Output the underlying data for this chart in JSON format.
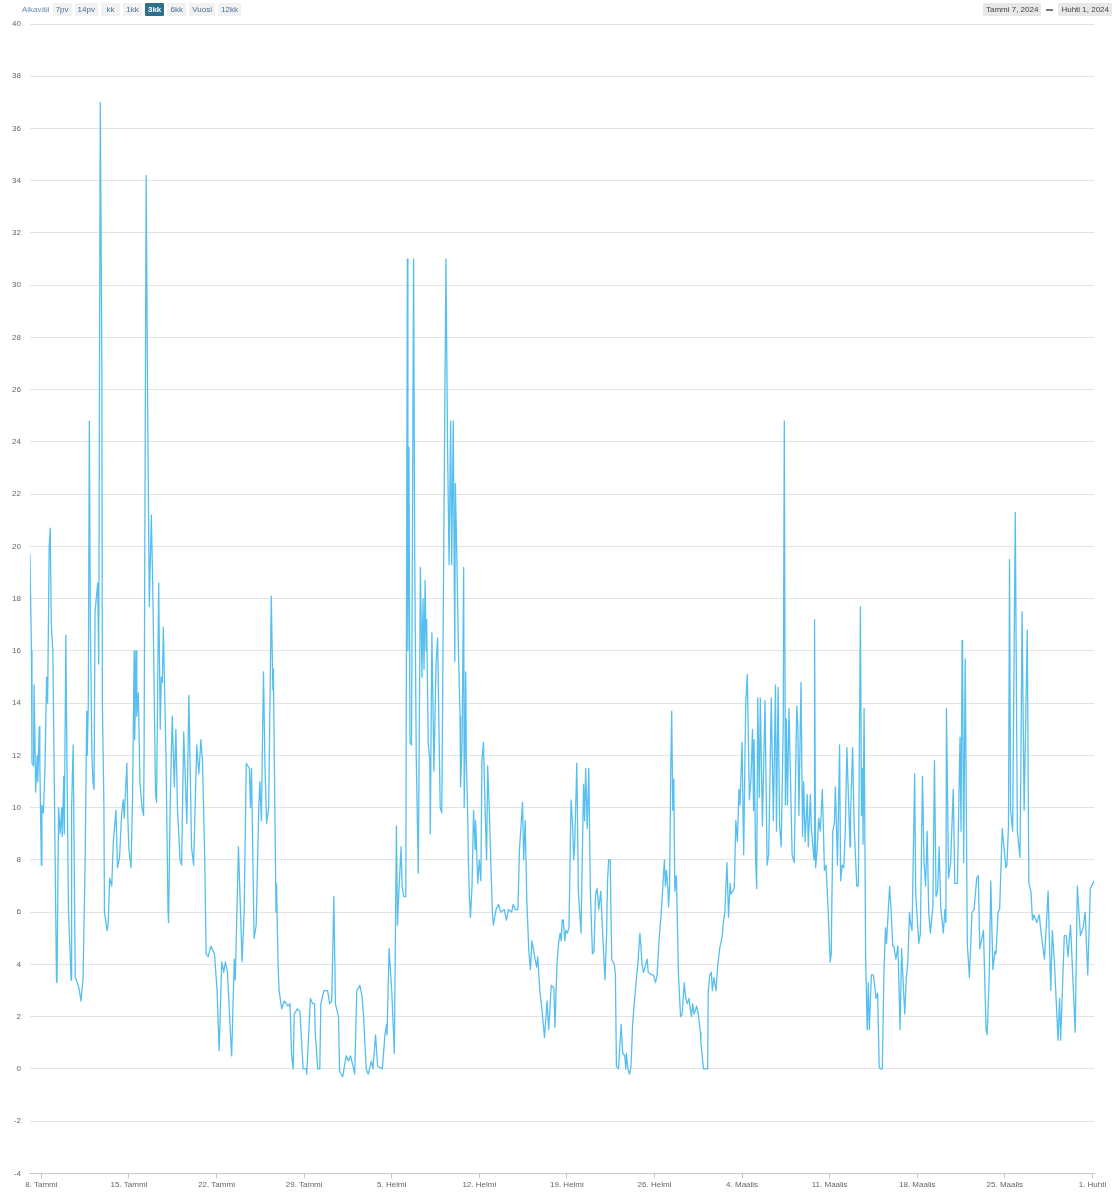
{
  "chart_data": {
    "type": "line",
    "color": "#56bff0",
    "marker": "none",
    "line_style": "solid",
    "grid": "y",
    "annotations": [
      "Aikaväli",
      "7pv",
      "14pv",
      "kk",
      "1kk",
      "3kk",
      "6kk",
      "Vuosi",
      "12kk",
      "Tammi 7, 2024",
      "Huhti 1, 2024"
    ],
    "xlim": [
      "2024-01-07T02:00",
      "2024-04-01T03:00"
    ],
    "xticks": [
      {
        "value": "2024-01-08",
        "label": "8. Tammi"
      },
      {
        "value": "2024-01-15",
        "label": "15. Tammi"
      },
      {
        "value": "2024-01-22",
        "label": "22. Tammi"
      },
      {
        "value": "2024-01-29",
        "label": "29. Tammi"
      },
      {
        "value": "2024-02-05",
        "label": "5. Helmi"
      },
      {
        "value": "2024-02-12",
        "label": "12. Helmi"
      },
      {
        "value": "2024-02-19",
        "label": "19. Helmi"
      },
      {
        "value": "2024-02-26",
        "label": "26. Helmi"
      },
      {
        "value": "2024-03-04",
        "label": "4. Maalis"
      },
      {
        "value": "2024-03-11",
        "label": "11. Maalis"
      },
      {
        "value": "2024-03-18",
        "label": "18. Maalis"
      },
      {
        "value": "2024-03-25",
        "label": "25. Maalis"
      },
      {
        "value": "2024-04-01",
        "label": "1. Huhti"
      }
    ],
    "ylim": [
      -4,
      40
    ],
    "yticks": [
      -4,
      -2,
      0,
      2,
      4,
      6,
      8,
      10,
      12,
      14,
      16,
      18,
      20,
      22,
      24,
      26,
      28,
      30,
      32,
      34,
      36,
      38,
      40
    ],
    "x": [
      "2024-01-07T02:00",
      "2024-01-07T05:00",
      "2024-01-07T06:00",
      "2024-01-07T09:00",
      "2024-01-07T10:00",
      "2024-01-07T13:00",
      "2024-01-07T16:00",
      "2024-01-07T17:00",
      "2024-01-07T20:00",
      "2024-01-07T21:00",
      "2024-01-08T00:00",
      "2024-01-08T01:00",
      "2024-01-08T04:00",
      "2024-01-08T07:00",
      "2024-01-08T10:00",
      "2024-01-08T12:00",
      "2024-01-08T15:00",
      "2024-01-08T17:00",
      "2024-01-08T19:00",
      "2024-01-08T22:00",
      "2024-01-09T05:00",
      "2024-01-09T06:00",
      "2024-01-09T09:00",
      "2024-01-09T12:00",
      "2024-01-09T15:00",
      "2024-01-09T16:00",
      "2024-01-09T19:00",
      "2024-01-09T20:00",
      "2024-01-09T23:00",
      "2024-01-10T00:00",
      "2024-01-10T04:00",
      "2024-01-10T07:00",
      "2024-01-10T09:00",
      "2024-01-10T10:00",
      "2024-01-10T13:00",
      "2024-01-10T17:00",
      "2024-01-10T21:00",
      "2024-01-11T00:00",
      "2024-01-11T04:00",
      "2024-01-11T08:00",
      "2024-01-11T12:00",
      "2024-01-11T15:00",
      "2024-01-11T16:00",
      "2024-01-11T18:00",
      "2024-01-11T20:00",
      "2024-01-11T22:00",
      "2024-01-12T01:00",
      "2024-01-12T03:00",
      "2024-01-12T05:00",
      "2024-01-12T07:00",
      "2024-01-12T12:00",
      "2024-01-12T14:00",
      "2024-01-12T17:00",
      "2024-01-12T20:00",
      "2024-01-12T21:00",
      "2024-01-13T00:00",
      "2024-01-13T01:00",
      "2024-01-13T06:00",
      "2024-01-13T08:00",
      "2024-01-13T11:00",
      "2024-01-13T15:00",
      "2024-01-13T18:00",
      "2024-01-13T21:00",
      "2024-01-13T23:00",
      "2024-01-14T02:00",
      "2024-01-14T06:00",
      "2024-01-14T10:00",
      "2024-01-14T13:00",
      "2024-01-14T15:00",
      "2024-01-14T20:00",
      "2024-01-14T22:00",
      "2024-01-15T00:00",
      "2024-01-15T04:00",
      "2024-01-15T07:00",
      "2024-01-15T10:00",
      "2024-01-15T11:00",
      "2024-01-15T14:00",
      "2024-01-15T15:00",
      "2024-01-15T18:00",
      "2024-01-15T21:00",
      "2024-01-16T01:00",
      "2024-01-16T04:00",
      "2024-01-16T05:00",
      "2024-01-16T09:00",
      "2024-01-16T12:00",
      "2024-01-16T15:00",
      "2024-01-16T19:00",
      "2024-01-16T22:00",
      "2024-01-17T03:00",
      "2024-01-17T05:00",
      "2024-01-17T09:00",
      "2024-01-17T12:00",
      "2024-01-17T14:00",
      "2024-01-17T16:00",
      "2024-01-17T18:00",
      "2024-01-17T23:00",
      "2024-01-18T03:00",
      "2024-01-18T04:00",
      "2024-01-18T07:00",
      "2024-01-18T11:00",
      "2024-01-18T15:00",
      "2024-01-18T18:00",
      "2024-01-18T21:00",
      "2024-01-19T02:00",
      "2024-01-19T05:00",
      "2024-01-19T09:00",
      "2024-01-19T15:00",
      "2024-01-19T19:00",
      "2024-01-20T00:00",
      "2024-01-20T04:00",
      "2024-01-20T10:00",
      "2024-01-20T14:00",
      "2024-01-20T18:00",
      "2024-01-20T21:00",
      "2024-01-21T01:00",
      "2024-01-21T04:00",
      "2024-01-21T08:00",
      "2024-01-21T13:00",
      "2024-01-21T20:00",
      "2024-01-22T01:00",
      "2024-01-22T05:00",
      "2024-01-22T10:00",
      "2024-01-22T14:00",
      "2024-01-22T17:00",
      "2024-01-22T21:00",
      "2024-01-23T03:00",
      "2024-01-23T05:00",
      "2024-01-23T10:00",
      "2024-01-23T12:00",
      "2024-01-23T18:00",
      "2024-01-24T01:00",
      "2024-01-24T05:00",
      "2024-01-24T09:00",
      "2024-01-24T15:00",
      "2024-01-24T17:00",
      "2024-01-24T19:00",
      "2024-01-25T00:00",
      "2024-01-25T04:00",
      "2024-01-25T09:00",
      "2024-01-25T11:00",
      "2024-01-25T14:00",
      "2024-01-25T18:00",
      "2024-01-25T21:00",
      "2024-01-26T00:00",
      "2024-01-26T04:00",
      "2024-01-26T09:00",
      "2024-01-26T12:00",
      "2024-01-26T13:00",
      "2024-01-26T18:00",
      "2024-01-26T19:00",
      "2024-01-26T22:00",
      "2024-01-27T00:00",
      "2024-01-27T05:00",
      "2024-01-27T10:00",
      "2024-01-27T17:00",
      "2024-01-27T21:00",
      "2024-01-28T00:00",
      "2024-01-28T03:00",
      "2024-01-28T05:00",
      "2024-01-28T11:00",
      "2024-01-28T16:00",
      "2024-01-28T22:00",
      "2024-01-29T04:00",
      "2024-01-29T05:00",
      "2024-01-29T12:00",
      "2024-01-29T16:00",
      "2024-01-29T20:00",
      "2024-01-29T21:00",
      "2024-01-30T02:00",
      "2024-01-30T06:00",
      "2024-01-30T08:00",
      "2024-01-30T14:00",
      "2024-01-30T21:00",
      "2024-01-31T01:00",
      "2024-01-31T05:00",
      "2024-01-31T09:00",
      "2024-01-31T12:00",
      "2024-01-31T18:00",
      "2024-01-31T20:00",
      "2024-02-01T02:00",
      "2024-02-01T06:00",
      "2024-02-01T09:00",
      "2024-02-01T13:00",
      "2024-02-01T17:00",
      "2024-02-01T23:00",
      "2024-02-02T01:00",
      "2024-02-02T05:00",
      "2024-02-02T11:00",
      "2024-02-02T15:00",
      "2024-02-02T18:00",
      "2024-02-02T23:00",
      "2024-02-03T03:00",
      "2024-02-03T09:00",
      "2024-02-03T12:00",
      "2024-02-03T17:00",
      "2024-02-03T21:00",
      "2024-02-04T06:00",
      "2024-02-04T11:00",
      "2024-02-04T14:00",
      "2024-02-04T15:00",
      "2024-02-04T19:00",
      "2024-02-05T00:00",
      "2024-02-05T05:00",
      "2024-02-05T09:00",
      "2024-02-05T11:00",
      "2024-02-05T13:00",
      "2024-02-05T18:00",
      "2024-02-05T20:00",
      "2024-02-05T23:00",
      "2024-02-06T03:00",
      "2024-02-06T06:00",
      "2024-02-06T07:00",
      "2024-02-06T09:00",
      "2024-02-06T11:00",
      "2024-02-06T14:00",
      "2024-02-06T18:00",
      "2024-02-06T20:00",
      "2024-02-06T23:00",
      "2024-02-07T03:00",
      "2024-02-07T07:00",
      "2024-02-07T10:00",
      "2024-02-07T12:00",
      "2024-02-07T14:00",
      "2024-02-07T16:00",
      "2024-02-07T18:00",
      "2024-02-07T19:00",
      "2024-02-07T22:00",
      "2024-02-08T01:00",
      "2024-02-08T02:00",
      "2024-02-08T05:00",
      "2024-02-08T09:00",
      "2024-02-08T13:00",
      "2024-02-08T16:00",
      "2024-02-08T19:00",
      "2024-02-08T21:00",
      "2024-02-09T00:00",
      "2024-02-09T08:00",
      "2024-02-09T11:00",
      "2024-02-09T14:00",
      "2024-02-09T17:00",
      "2024-02-09T19:00",
      "2024-02-09T22:00",
      "2024-02-10T01:00",
      "2024-02-10T02:00",
      "2024-02-10T05:00",
      "2024-02-10T08:00",
      "2024-02-10T11:00",
      "2024-02-10T12:00",
      "2024-02-10T15:00",
      "2024-02-10T18:00",
      "2024-02-10T19:00",
      "2024-02-10T22:00",
      "2024-02-10T23:00",
      "2024-02-11T02:00",
      "2024-02-11T03:00",
      "2024-02-11T05:00",
      "2024-02-11T07:00",
      "2024-02-11T10:00",
      "2024-02-11T13:00",
      "2024-02-11T16:00",
      "2024-02-11T17:00",
      "2024-02-11T21:00",
      "2024-02-12T00:00",
      "2024-02-12T03:00",
      "2024-02-12T05:00",
      "2024-02-12T08:00",
      "2024-02-12T11:00",
      "2024-02-12T14:00",
      "2024-02-12T16:00",
      "2024-02-12T19:00",
      "2024-02-12T22:00",
      "2024-02-13T01:00",
      "2024-02-13T03:00",
      "2024-02-13T08:00",
      "2024-02-13T13:00",
      "2024-02-13T17:00",
      "2024-02-14T00:00",
      "2024-02-14T04:00",
      "2024-02-14T08:00",
      "2024-02-14T14:00",
      "2024-02-14T17:00",
      "2024-02-14T21:00",
      "2024-02-15T02:00",
      "2024-02-15T05:00",
      "2024-02-15T11:00",
      "2024-02-15T13:00",
      "2024-02-15T16:00",
      "2024-02-15T19:00",
      "2024-02-15T23:00",
      "2024-02-16T02:00",
      "2024-02-16T05:00",
      "2024-02-16T11:00",
      "2024-02-16T14:00",
      "2024-02-16T16:00",
      "2024-02-16T20:00",
      "2024-02-17T00:00",
      "2024-02-17T05:00",
      "2024-02-17T10:00",
      "2024-02-17T13:00",
      "2024-02-17T18:00",
      "2024-02-17T23:00",
      "2024-02-18T01:00",
      "2024-02-18T05:00",
      "2024-02-18T08:00",
      "2024-02-18T11:00",
      "2024-02-18T13:00",
      "2024-02-18T15:00",
      "2024-02-18T17:00",
      "2024-02-18T20:00",
      "2024-02-18T22:00",
      "2024-02-19T01:00",
      "2024-02-19T04:00",
      "2024-02-19T08:00",
      "2024-02-19T11:00",
      "2024-02-19T13:00",
      "2024-02-19T15:00",
      "2024-02-19T19:00",
      "2024-02-19T22:00",
      "2024-02-20T03:00",
      "2024-02-20T08:00",
      "2024-02-20T10:00",
      "2024-02-20T12:00",
      "2024-02-20T15:00",
      "2024-02-20T18:00",
      "2024-02-20T21:00",
      "2024-02-21T01:00",
      "2024-02-21T04:00",
      "2024-02-21T07:00",
      "2024-02-21T10:00",
      "2024-02-21T13:00",
      "2024-02-21T17:00",
      "2024-02-21T21:00",
      "2024-02-22T01:00",
      "2024-02-22T04:00",
      "2024-02-22T06:00",
      "2024-02-22T08:00",
      "2024-02-22T11:00",
      "2024-02-22T14:00",
      "2024-02-22T19:00",
      "2024-02-22T21:00",
      "2024-02-22T23:00",
      "2024-02-23T03:00",
      "2024-02-23T08:00",
      "2024-02-23T11:00",
      "2024-02-23T15:00",
      "2024-02-23T17:00",
      "2024-02-23T18:00",
      "2024-02-23T21:00",
      "2024-02-24T00:00",
      "2024-02-24T03:00",
      "2024-02-24T06:00",
      "2024-02-24T10:00",
      "2024-02-24T14:00",
      "2024-02-24T16:00",
      "2024-02-24T20:00",
      "2024-02-24T22:00",
      "2024-02-25T00:00",
      "2024-02-25T03:00",
      "2024-02-25T10:00",
      "2024-02-25T12:00",
      "2024-02-25T18:00",
      "2024-02-25T22:00",
      "2024-02-26T02:00",
      "2024-02-26T05:00",
      "2024-02-26T09:00",
      "2024-02-26T13:00",
      "2024-02-26T16:00",
      "2024-02-26T19:00",
      "2024-02-26T21:00",
      "2024-02-26T23:00",
      "2024-02-27T02:00",
      "2024-02-27T03:00",
      "2024-02-27T05:00",
      "2024-02-27T07:00",
      "2024-02-27T09:00",
      "2024-02-27T11:00",
      "2024-02-27T13:00",
      "2024-02-27T15:00",
      "2024-02-27T18:00",
      "2024-02-27T22:00",
      "2024-02-28T02:00",
      "2024-02-28T05:00",
      "2024-02-28T09:00",
      "2024-02-28T12:00",
      "2024-02-28T15:00",
      "2024-02-28T18:00",
      "2024-02-28T20:00",
      "2024-02-28T23:00",
      "2024-02-29T01:00",
      "2024-02-29T04:00",
      "2024-02-29T09:00",
      "2024-02-29T12:00",
      "2024-02-29T16:00",
      "2024-02-29T17:00",
      "2024-02-29T22:00",
      "2024-03-01T06:00",
      "2024-03-01T07:00",
      "2024-03-01T10:00",
      "2024-03-01T13:00",
      "2024-03-01T15:00",
      "2024-03-01T18:00",
      "2024-03-01T22:00",
      "2024-03-02T01:00",
      "2024-03-02T05:00",
      "2024-03-02T07:00",
      "2024-03-02T10:00",
      "2024-03-02T12:00",
      "2024-03-02T15:00",
      "2024-03-02T19:00",
      "2024-03-02T22:00",
      "2024-03-03T01:00",
      "2024-03-03T03:00",
      "2024-03-03T06:00",
      "2024-03-03T09:00",
      "2024-03-03T12:00",
      "2024-03-03T15:00",
      "2024-03-03T18:00",
      "2024-03-03T20:00",
      "2024-03-04T00:00",
      "2024-03-04T03:00",
      "2024-03-04T07:00",
      "2024-03-04T10:00",
      "2024-03-04T14:00",
      "2024-03-04T17:00",
      "2024-03-04T20:00",
      "2024-03-04T22:00",
      "2024-03-04T23:00",
      "2024-03-05T02:00",
      "2024-03-05T04:00",
      "2024-03-05T06:00",
      "2024-03-05T09:00",
      "2024-03-05T11:00",
      "2024-03-05T15:00",
      "2024-03-05T20:00",
      "2024-03-06T00:00",
      "2024-03-06T03:00",
      "2024-03-06T08:00",
      "2024-03-06T12:00",
      "2024-03-06T16:00",
      "2024-03-06T18:00",
      "2024-03-06T21:00",
      "2024-03-07T00:00",
      "2024-03-07T03:00",
      "2024-03-07T07:00",
      "2024-03-07T09:00",
      "2024-03-07T11:00",
      "2024-03-07T13:00",
      "2024-03-07T15:00",
      "2024-03-07T18:00",
      "2024-03-08T00:00",
      "2024-03-08T04:00",
      "2024-03-08T07:00",
      "2024-03-08T09:00",
      "2024-03-08T11:00",
      "2024-03-08T13:00",
      "2024-03-08T17:00",
      "2024-03-08T20:00",
      "2024-03-08T22:00",
      "2024-03-09T01:00",
      "2024-03-09T05:00",
      "2024-03-09T07:00",
      "2024-03-09T11:00",
      "2024-03-09T13:00",
      "2024-03-09T18:00",
      "2024-03-09T19:00",
      "2024-03-09T21:00",
      "2024-03-10T00:00",
      "2024-03-10T03:00",
      "2024-03-10T06:00",
      "2024-03-10T10:00",
      "2024-03-10T14:00",
      "2024-03-10T17:00",
      "2024-03-10T21:00",
      "2024-03-11T01:00",
      "2024-03-11T03:00",
      "2024-03-11T06:00",
      "2024-03-11T09:00",
      "2024-03-11T11:00",
      "2024-03-11T15:00",
      "2024-03-11T19:00",
      "2024-03-11T21:00",
      "2024-03-12T00:00",
      "2024-03-12T03:00",
      "2024-03-12T06:00",
      "2024-03-12T09:00",
      "2024-03-12T15:00",
      "2024-03-12T16:00",
      "2024-03-12T20:00",
      "2024-03-12T23:00",
      "2024-03-13T04:00",
      "2024-03-13T07:00",
      "2024-03-13T11:00",
      "2024-03-13T13:00",
      "2024-03-13T15:00",
      "2024-03-13T16:00",
      "2024-03-13T18:00",
      "2024-03-13T21:00",
      "2024-03-14T00:00",
      "2024-03-14T02:00",
      "2024-03-14T04:00",
      "2024-03-14T08:00",
      "2024-03-14T12:00",
      "2024-03-14T17:00",
      "2024-03-14T20:00",
      "2024-03-14T23:00",
      "2024-03-15T01:00",
      "2024-03-15T05:00",
      "2024-03-15T08:00",
      "2024-03-15T11:00",
      "2024-03-15T13:00",
      "2024-03-15T19:00",
      "2024-03-15T22:00",
      "2024-03-16T01:00",
      "2024-03-16T03:00",
      "2024-03-16T07:00",
      "2024-03-16T11:00",
      "2024-03-16T15:00",
      "2024-03-16T18:00",
      "2024-03-16T21:00",
      "2024-03-17T00:00",
      "2024-03-17T03:00",
      "2024-03-17T06:00",
      "2024-03-17T09:00",
      "2024-03-17T11:00",
      "2024-03-17T14:00",
      "2024-03-17T19:00",
      "2024-03-17T21:00",
      "2024-03-18T03:00",
      "2024-03-18T06:00",
      "2024-03-18T10:00",
      "2024-03-18T13:00",
      "2024-03-18T16:00",
      "2024-03-18T19:00",
      "2024-03-18T22:00",
      "2024-03-19T01:00",
      "2024-03-19T06:00",
      "2024-03-19T09:00",
      "2024-03-19T12:00",
      "2024-03-19T15:00",
      "2024-03-19T18:00",
      "2024-03-19T21:00",
      "2024-03-20T02:00",
      "2024-03-20T05:00",
      "2024-03-20T07:00",
      "2024-03-20T08:00",
      "2024-03-20T12:00",
      "2024-03-20T16:00",
      "2024-03-20T21:00",
      "2024-03-21T00:00",
      "2024-03-21T05:00",
      "2024-03-21T10:00",
      "2024-03-21T12:00",
      "2024-03-21T14:00",
      "2024-03-21T15:00",
      "2024-03-21T17:00",
      "2024-03-21T20:00",
      "2024-03-22T00:00",
      "2024-03-22T04:00",
      "2024-03-22T09:00",
      "2024-03-22T13:00",
      "2024-03-22T18:00",
      "2024-03-22T21:00",
      "2024-03-23T00:00",
      "2024-03-23T07:00",
      "2024-03-23T12:00",
      "2024-03-23T14:00",
      "2024-03-23T18:00",
      "2024-03-23T21:00",
      "2024-03-24T01:00",
      "2024-03-24T05:00",
      "2024-03-24T07:00",
      "2024-03-24T11:00",
      "2024-03-24T14:00",
      "2024-03-24T19:00",
      "2024-03-25T02:00",
      "2024-03-25T04:00",
      "2024-03-25T07:00",
      "2024-03-25T09:00",
      "2024-03-25T11:00",
      "2024-03-25T15:00",
      "2024-03-25T20:00",
      "2024-03-26T00:00",
      "2024-03-26T05:00",
      "2024-03-26T07:00",
      "2024-03-26T09:00",
      "2024-03-26T13:00",
      "2024-03-26T19:00",
      "2024-03-26T22:00",
      "2024-03-27T02:00",
      "2024-03-27T05:00",
      "2024-03-27T08:00",
      "2024-03-27T13:00",
      "2024-03-27T18:00",
      "2024-03-27T21:00",
      "2024-03-28T04:00",
      "2024-03-28T11:00",
      "2024-03-28T16:00",
      "2024-03-28T19:00",
      "2024-03-28T23:00",
      "2024-03-29T06:00",
      "2024-03-29T09:00",
      "2024-03-29T11:00",
      "2024-03-29T18:00",
      "2024-03-29T22:00",
      "2024-03-30T01:00",
      "2024-03-30T06:00",
      "2024-03-30T15:00",
      "2024-03-30T19:00",
      "2024-03-31T01:00",
      "2024-03-31T06:00",
      "2024-03-31T10:00",
      "2024-03-31T15:00",
      "2024-03-31T20:00",
      "2024-04-01T03:00"
    ],
    "values": [
      19.7,
      16.0,
      11.7,
      11.6,
      14.7,
      10.6,
      12.0,
      11.0,
      13.1,
      11.7,
      7.8,
      10.1,
      9.8,
      11.6,
      15.0,
      14.0,
      20.0,
      20.7,
      17.0,
      16.0,
      3.4,
      3.3,
      10.0,
      9.0,
      10.0,
      8.9,
      11.2,
      9.0,
      16.6,
      14.0,
      6.0,
      4.5,
      3.4,
      10.0,
      12.4,
      3.5,
      3.3,
      3.1,
      2.6,
      3.5,
      8.0,
      13.7,
      12.0,
      14.0,
      24.8,
      17.0,
      12.0,
      11.0,
      10.7,
      17.5,
      18.6,
      15.5,
      37.0,
      27.0,
      14.0,
      10.0,
      6.0,
      5.3,
      5.5,
      7.3,
      7.0,
      8.7,
      9.4,
      9.9,
      7.7,
      8.1,
      9.8,
      10.3,
      9.6,
      11.7,
      9.5,
      8.4,
      7.7,
      10.5,
      16.0,
      12.6,
      16.0,
      13.5,
      14.4,
      11.0,
      10.0,
      9.7,
      12.0,
      34.2,
      25.0,
      17.7,
      21.2,
      18.0,
      10.5,
      10.2,
      18.6,
      13.0,
      15.0,
      14.8,
      16.9,
      12.0,
      6.0,
      5.6,
      10.0,
      13.5,
      10.8,
      13.0,
      10.0,
      8.0,
      7.8,
      12.9,
      9.4,
      14.3,
      8.5,
      7.8,
      12.4,
      11.3,
      12.6,
      11.8,
      8.4,
      4.4,
      4.3,
      4.7,
      4.4,
      3.0,
      0.7,
      4.1,
      3.7,
      4.1,
      3.7,
      1.2,
      0.5,
      4.2,
      3.4,
      8.5,
      4.1,
      6.0,
      11.7,
      11.5,
      10.0,
      11.5,
      5.0,
      5.5,
      10.0,
      11.0,
      9.5,
      15.2,
      11.5,
      9.4,
      10.0,
      18.1,
      14.5,
      15.3,
      6.0,
      7.1,
      4.0,
      3.0,
      2.3,
      2.6,
      2.4,
      2.5,
      0.5,
      0.0,
      2.1,
      2.3,
      2.2,
      0.0,
      0.0,
      -0.2,
      2.7,
      2.5,
      2.5,
      1.5,
      0.0,
      0.0,
      2.5,
      3.0,
      3.0,
      2.5,
      2.6,
      6.6,
      2.5,
      2.0,
      -0.1,
      -0.3,
      0.2,
      0.5,
      0.3,
      0.5,
      0.0,
      -0.2,
      3.0,
      3.2,
      2.8,
      2.0,
      0.0,
      -0.2,
      0.3,
      0.0,
      1.3,
      0.1,
      0.0,
      1.3,
      1.7,
      1.3,
      4.6,
      3.0,
      0.6,
      9.3,
      5.5,
      6.5,
      8.5,
      7.0,
      6.6,
      6.6,
      31.0,
      16.0,
      23.8,
      12.5,
      12.4,
      31.0,
      20.0,
      12.0,
      7.5,
      19.2,
      15.0,
      18.0,
      15.3,
      18.7,
      16.0,
      17.2,
      12.5,
      11.8,
      9.0,
      16.7,
      11.4,
      15.5,
      16.5,
      12.5,
      10.0,
      9.8,
      31.0,
      24.0,
      19.3,
      24.8,
      19.3,
      24.8,
      15.6,
      22.4,
      19.5,
      16.0,
      13.5,
      10.8,
      12.5,
      19.2,
      10.0,
      15.2,
      11.9,
      9.5,
      8.0,
      6.6,
      5.8,
      7.0,
      9.9,
      8.4,
      9.5,
      7.1,
      8.0,
      7.2,
      11.8,
      12.5,
      10.0,
      8.0,
      11.6,
      10.0,
      8.0,
      6.0,
      5.5,
      6.1,
      6.3,
      6.0,
      6.1,
      5.7,
      6.1,
      6.0,
      6.3,
      6.1,
      6.1,
      8.4,
      10.2,
      8.0,
      9.5,
      6.5,
      4.5,
      3.8,
      4.9,
      4.2,
      3.9,
      4.3,
      3.0,
      2.3,
      1.2,
      2.6,
      1.5,
      3.2,
      3.1,
      1.6,
      4.0,
      4.8,
      5.2,
      4.9,
      5.7,
      5.7,
      4.9,
      5.3,
      5.2,
      5.4,
      10.3,
      9.3,
      8.0,
      8.6,
      11.7,
      6.8,
      5.2,
      10.9,
      9.5,
      11.5,
      9.2,
      11.5,
      6.8,
      4.4,
      4.5,
      6.7,
      6.9,
      6.1,
      6.8,
      5.0,
      3.4,
      5.1,
      7.2,
      8.0,
      8.0,
      4.2,
      4.0,
      3.6,
      0.1,
      0.0,
      1.7,
      0.6,
      0.5,
      0.0,
      0.6,
      0.0,
      -0.2,
      0.1,
      1.7,
      2.7,
      3.6,
      4.0,
      5.2,
      4.7,
      4.0,
      3.7,
      4.2,
      3.7,
      3.6,
      3.6,
      3.3,
      3.6,
      5.0,
      6.0,
      7.0,
      8.0,
      7.0,
      7.6,
      6.8,
      6.2,
      7.0,
      11.1,
      13.7,
      9.9,
      11.1,
      6.8,
      7.4,
      3.6,
      2.0,
      2.1,
      3.3,
      2.7,
      2.5,
      2.7,
      2.4,
      2.0,
      2.5,
      2.1,
      2.4,
      2.1,
      1.4,
      1.0,
      0.0,
      0.0,
      2.9,
      3.6,
      3.7,
      3.0,
      3.5,
      3.0,
      3.9,
      4.6,
      4.8,
      5.1,
      5.6,
      6.0,
      7.9,
      5.8,
      7.1,
      6.7,
      6.8,
      6.9,
      9.5,
      8.7,
      10.7,
      10.1,
      12.5,
      8.2,
      14.0,
      15.1,
      10.3,
      11.1,
      13.0,
      9.9,
      12.6,
      8.0,
      6.9,
      14.2,
      10.4,
      14.2,
      9.3,
      14.1,
      7.8,
      8.2,
      14.2,
      9.5,
      14.7,
      9.1,
      14.6,
      9.3,
      8.5,
      13.2,
      24.8,
      10.1,
      13.4,
      10.1,
      13.8,
      8.2,
      7.9,
      11.7,
      13.9,
      13.1,
      9.7,
      14.8,
      8.9,
      11.0,
      8.7,
      10.5,
      8.5,
      10.5,
      9.2,
      8.0,
      17.2,
      7.7,
      8.4,
      9.6,
      9.1,
      10.7,
      7.6,
      7.8,
      6.1,
      4.1,
      4.4,
      9.1,
      9.4,
      10.8,
      7.8,
      12.4,
      7.2,
      7.8,
      7.7,
      9.1,
      12.3,
      8.5,
      9.7,
      12.3,
      9.3,
      7.0,
      7.0,
      17.7,
      9.7,
      11.5,
      8.6,
      13.8,
      4.2,
      1.5,
      3.3,
      1.5,
      3.6,
      3.6,
      2.7,
      2.9,
      0.1,
      0.0,
      0.0,
      3.6,
      5.4,
      4.8,
      7.0,
      6.0,
      4.7,
      4.7,
      4.2,
      4.7,
      1.5,
      4.6,
      3.3,
      2.1,
      3.5,
      4.1,
      6.0,
      5.6,
      5.3,
      11.3,
      6.7,
      4.8,
      5.2,
      11.2,
      7.9,
      7.0,
      9.1,
      6.0,
      5.2,
      6.2,
      11.8,
      6.6,
      6.8,
      8.5,
      6.2,
      5.2,
      6.1,
      5.6,
      13.8,
      7.3,
      7.9,
      10.7,
      7.1,
      7.1,
      12.7,
      9.1,
      16.4,
      15.7,
      7.9,
      15.7,
      4.8,
      3.5,
      6.0,
      6.1,
      7.3,
      7.4,
      4.6,
      5.3,
      1.5,
      1.3,
      3.5,
      7.2,
      3.8,
      4.5,
      4.4,
      6.0,
      6.1,
      9.2,
      7.7,
      7.8,
      9.3,
      19.5,
      9.9,
      9.1,
      21.3,
      9.1,
      8.1,
      12.1,
      17.5,
      9.9,
      16.8,
      7.1,
      6.8,
      5.7,
      5.9,
      5.6,
      5.9,
      5.3,
      4.2,
      6.8,
      3.0,
      5.3,
      4.1,
      1.1,
      2.7,
      1.1,
      5.1,
      5.1,
      4.3,
      5.5,
      1.4,
      7.0,
      5.1,
      5.4,
      6.0,
      3.6,
      6.9,
      7.2
    ]
  }
}
